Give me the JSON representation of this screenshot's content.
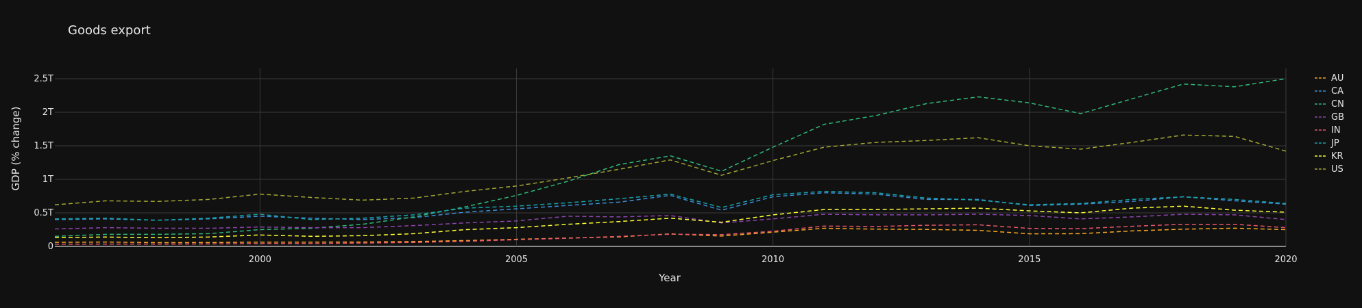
{
  "chart_data": {
    "type": "line",
    "title": "Goods export",
    "xlabel": "Year",
    "ylabel": "GDP (% change)",
    "xlim": [
      1996,
      2020
    ],
    "ylim": [
      0,
      2.5
    ],
    "x_ticks": [
      2000,
      2005,
      2010,
      2015,
      2020
    ],
    "y_ticks": [
      0,
      0.5,
      1,
      1.5,
      2,
      2.5
    ],
    "y_tick_labels": [
      "0",
      "0.5T",
      "1T",
      "1.5T",
      "2T",
      "2.5T"
    ],
    "grid": true,
    "legend_position": "right",
    "line_style": "dashed",
    "background": "#111111",
    "grid_color": "#3a3a3a",
    "x": [
      1996,
      1997,
      1998,
      1999,
      2000,
      2001,
      2002,
      2003,
      2004,
      2005,
      2006,
      2007,
      2008,
      2009,
      2010,
      2011,
      2012,
      2013,
      2014,
      2015,
      2016,
      2017,
      2018,
      2019,
      2020
    ],
    "series": [
      {
        "name": "AU",
        "color": "#f5a623",
        "values": [
          0.06,
          0.065,
          0.056,
          0.057,
          0.064,
          0.064,
          0.065,
          0.072,
          0.087,
          0.106,
          0.124,
          0.142,
          0.187,
          0.154,
          0.212,
          0.27,
          0.257,
          0.253,
          0.24,
          0.188,
          0.19,
          0.231,
          0.257,
          0.271,
          0.25
        ]
      },
      {
        "name": "CA",
        "color": "#3b8fd9",
        "values": [
          0.4,
          0.41,
          0.39,
          0.41,
          0.45,
          0.42,
          0.4,
          0.43,
          0.51,
          0.56,
          0.61,
          0.66,
          0.76,
          0.54,
          0.74,
          0.8,
          0.78,
          0.7,
          0.7,
          0.61,
          0.63,
          0.67,
          0.74,
          0.68,
          0.63
        ]
      },
      {
        "name": "CN",
        "color": "#2fb87a",
        "values": [
          0.15,
          0.18,
          0.18,
          0.19,
          0.25,
          0.27,
          0.33,
          0.44,
          0.59,
          0.76,
          0.97,
          1.22,
          1.35,
          1.12,
          1.48,
          1.82,
          1.95,
          2.13,
          2.23,
          2.14,
          1.98,
          2.2,
          2.42,
          2.38,
          2.5
        ]
      },
      {
        "name": "GB",
        "color": "#8e44ad",
        "values": [
          0.26,
          0.28,
          0.27,
          0.27,
          0.29,
          0.28,
          0.28,
          0.31,
          0.35,
          0.38,
          0.45,
          0.44,
          0.46,
          0.35,
          0.41,
          0.48,
          0.47,
          0.47,
          0.48,
          0.46,
          0.41,
          0.44,
          0.48,
          0.47,
          0.4
        ]
      },
      {
        "name": "IN",
        "color": "#e8556b",
        "values": [
          0.033,
          0.035,
          0.034,
          0.037,
          0.043,
          0.044,
          0.05,
          0.059,
          0.076,
          0.1,
          0.121,
          0.149,
          0.182,
          0.176,
          0.226,
          0.303,
          0.297,
          0.315,
          0.322,
          0.268,
          0.264,
          0.3,
          0.33,
          0.33,
          0.28
        ]
      },
      {
        "name": "JP",
        "color": "#17a2a8",
        "values": [
          0.41,
          0.42,
          0.39,
          0.42,
          0.48,
          0.4,
          0.42,
          0.47,
          0.57,
          0.6,
          0.65,
          0.71,
          0.78,
          0.58,
          0.77,
          0.82,
          0.8,
          0.72,
          0.69,
          0.62,
          0.64,
          0.7,
          0.74,
          0.7,
          0.64
        ]
      },
      {
        "name": "KR",
        "color": "#ffff33",
        "values": [
          0.13,
          0.14,
          0.13,
          0.14,
          0.17,
          0.15,
          0.16,
          0.19,
          0.25,
          0.28,
          0.33,
          0.37,
          0.42,
          0.36,
          0.47,
          0.55,
          0.55,
          0.56,
          0.57,
          0.53,
          0.5,
          0.57,
          0.6,
          0.54,
          0.51
        ]
      },
      {
        "name": "US",
        "color": "#a2a832",
        "values": [
          0.62,
          0.68,
          0.67,
          0.7,
          0.78,
          0.73,
          0.69,
          0.72,
          0.82,
          0.9,
          1.02,
          1.15,
          1.29,
          1.06,
          1.28,
          1.48,
          1.55,
          1.58,
          1.62,
          1.5,
          1.45,
          1.55,
          1.66,
          1.64,
          1.42
        ]
      }
    ]
  }
}
